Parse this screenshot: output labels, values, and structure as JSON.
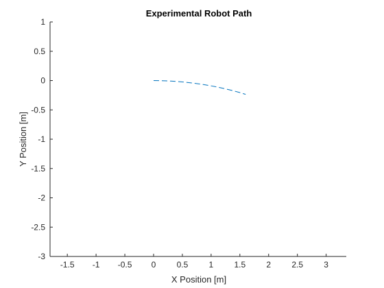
{
  "chart_data": {
    "type": "line",
    "title": "Experimental Robot Path",
    "xlabel": "X Position [m]",
    "ylabel": "Y Position [m]",
    "xlim": [
      -1.8,
      3.35
    ],
    "ylim": [
      -3,
      1
    ],
    "xticks": [
      -1.5,
      -1,
      -0.5,
      0,
      0.5,
      1,
      1.5,
      2,
      2.5,
      3
    ],
    "xtick_labels": [
      "-1.5",
      "-1",
      "-0.5",
      "0",
      "0.5",
      "1",
      "1.5",
      "2",
      "2.5",
      "3"
    ],
    "yticks": [
      1,
      0.5,
      0,
      -0.5,
      -1,
      -1.5,
      -2,
      -2.5,
      -3
    ],
    "ytick_labels": [
      "1",
      "0.5",
      "0",
      "-0.5",
      "-1",
      "-1.5",
      "-2",
      "-2.5",
      "-3"
    ],
    "grid": false,
    "series": [
      {
        "line_style": "dashed",
        "color": "#0072BD",
        "x": [
          0.0,
          0.1,
          0.2,
          0.3,
          0.4,
          0.5,
          0.6,
          0.7,
          0.8,
          0.9,
          1.0,
          1.1,
          1.2,
          1.3,
          1.4,
          1.5,
          1.6
        ],
        "y": [
          0.0,
          -0.001,
          -0.004,
          -0.009,
          -0.015,
          -0.023,
          -0.033,
          -0.045,
          -0.058,
          -0.073,
          -0.09,
          -0.109,
          -0.13,
          -0.153,
          -0.178,
          -0.205,
          -0.235
        ]
      }
    ]
  }
}
